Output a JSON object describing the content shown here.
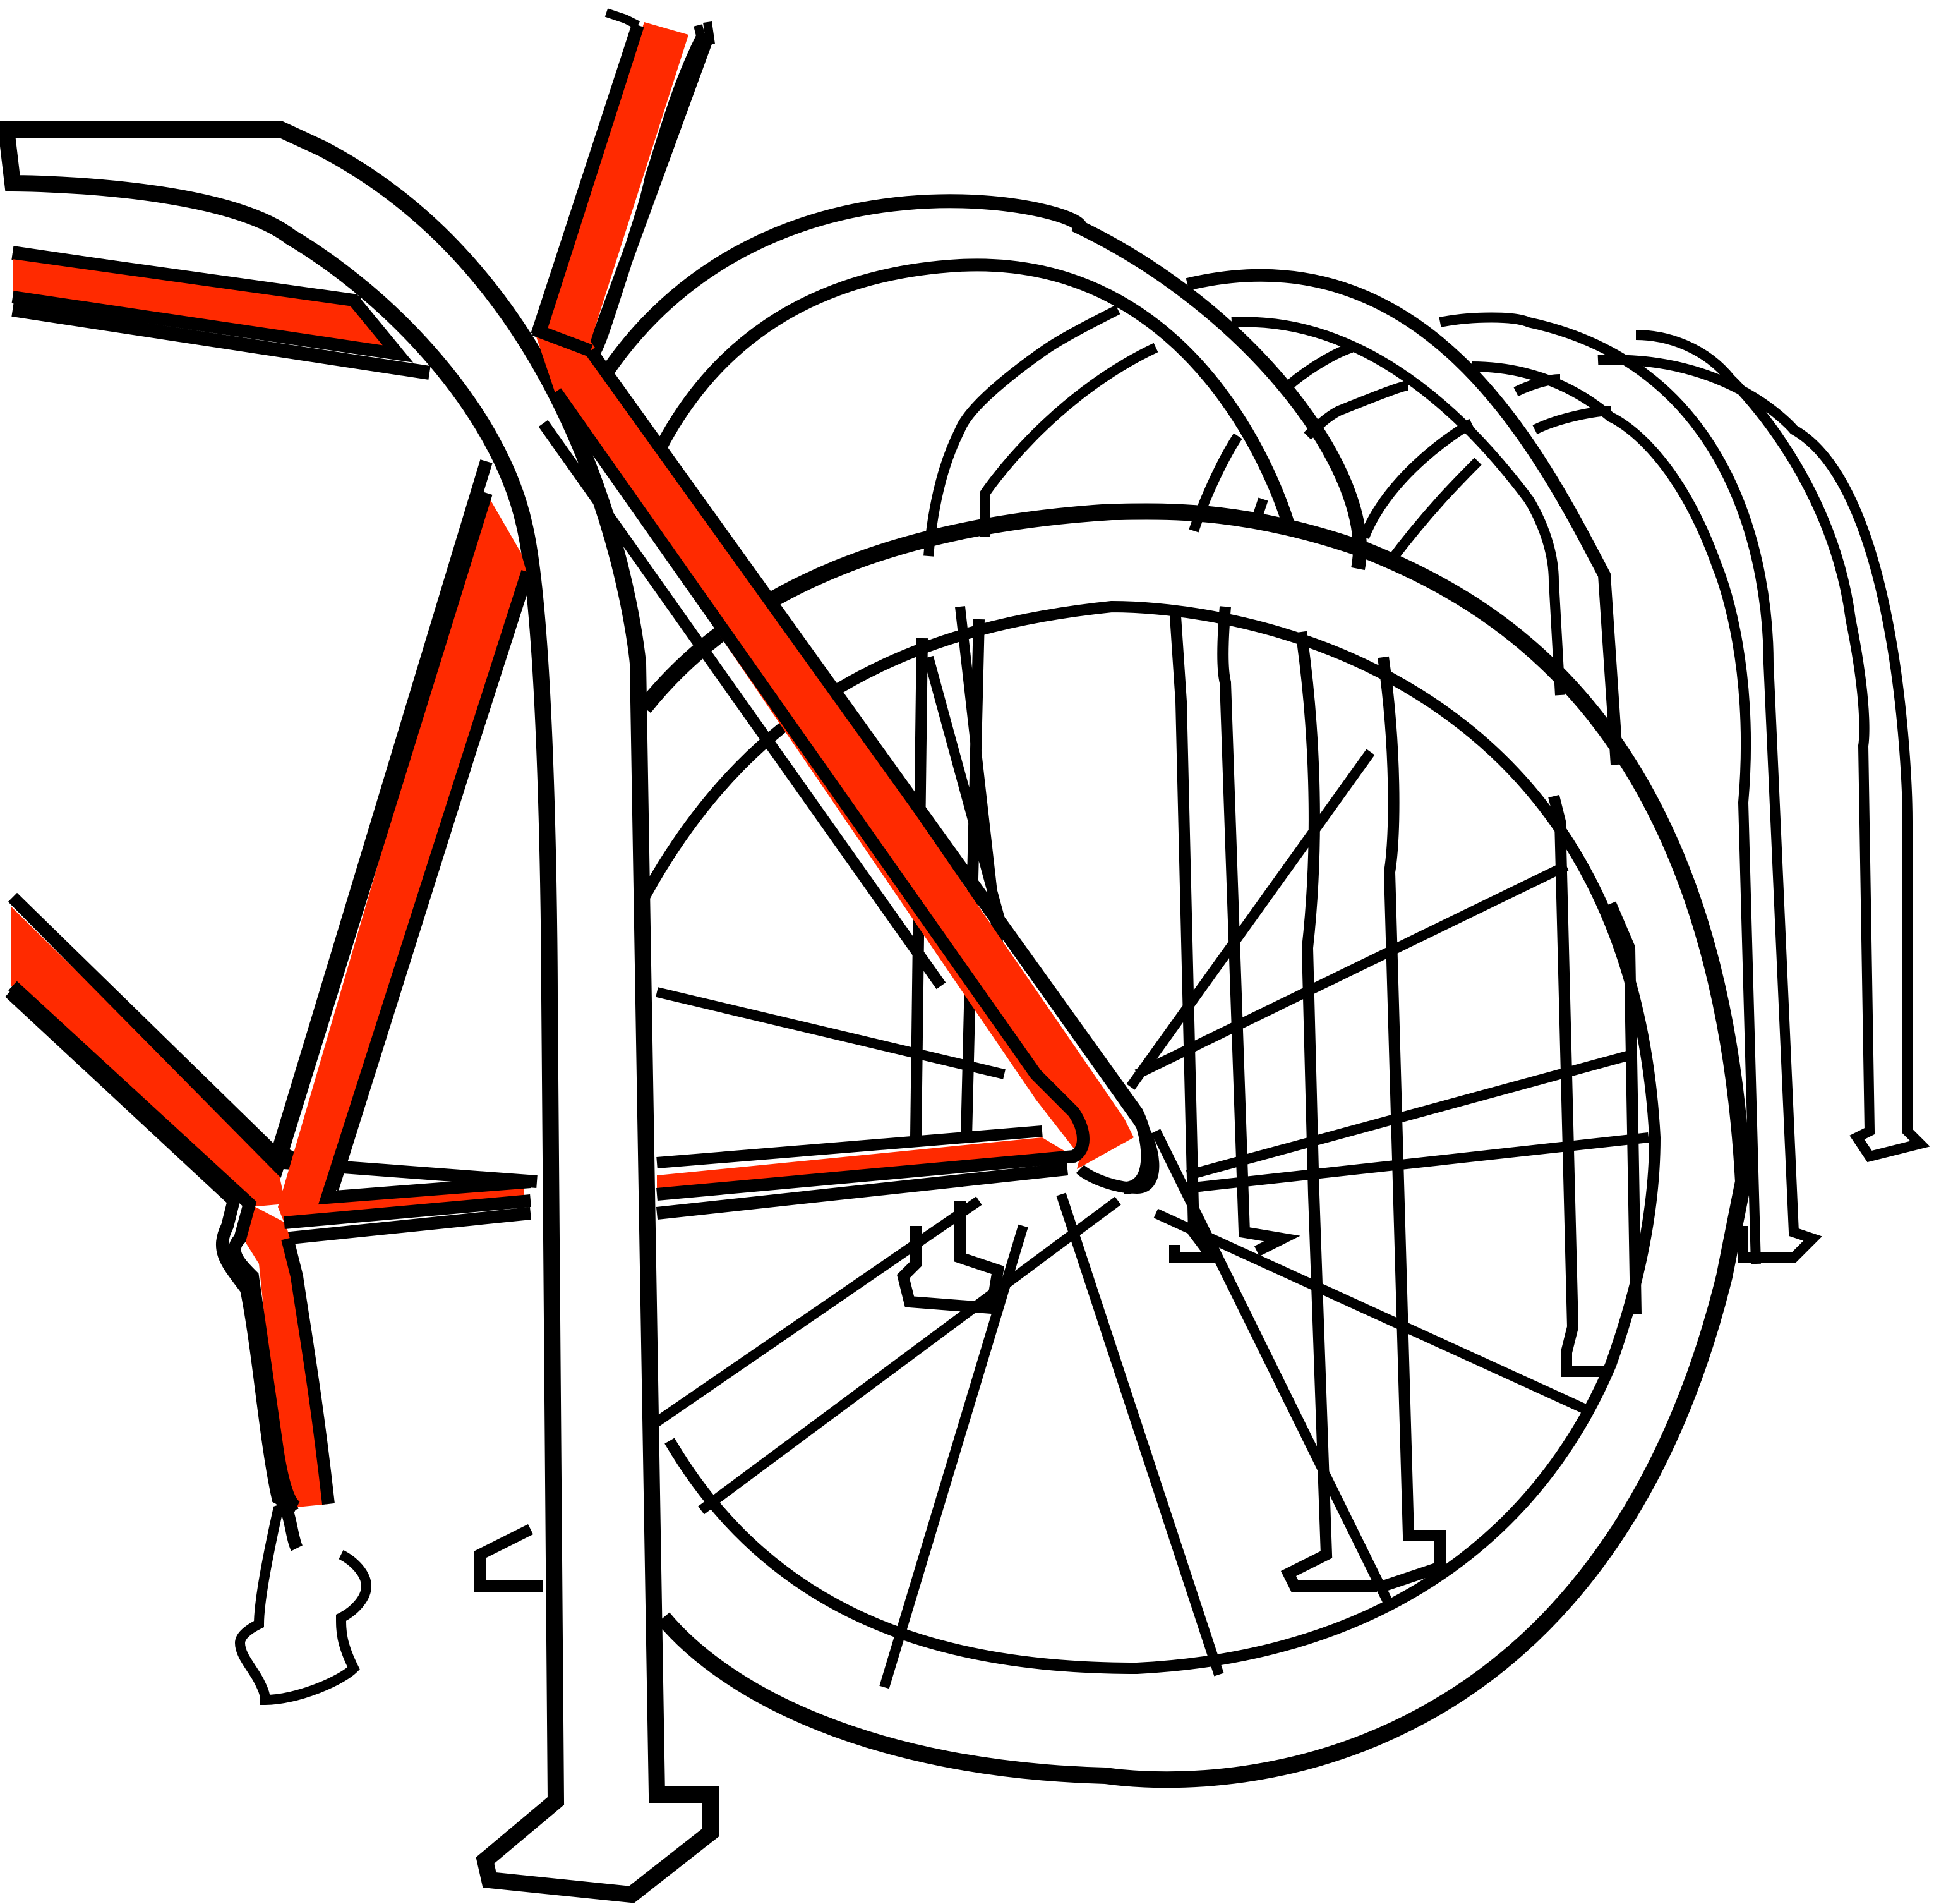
{
  "illustration": {
    "subject": "",
    "colors": {
      "background": "#ffffff",
      "ink": "#000000",
      "accent": "#ff2a00"
    }
  }
}
